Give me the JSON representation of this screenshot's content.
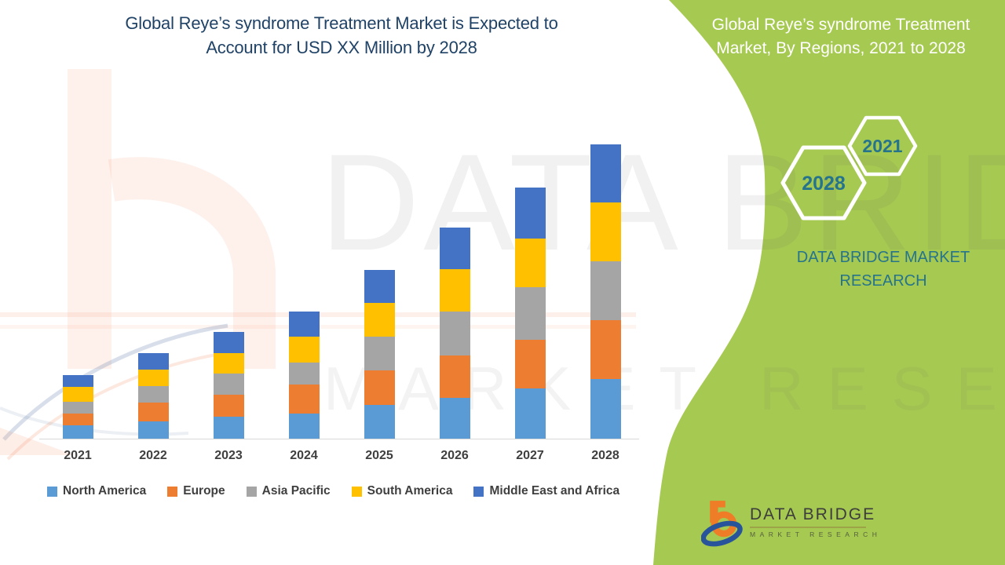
{
  "page": {
    "title_line1": "Global Reye’s syndrome Treatment Market is Expected to",
    "title_line2": "Account for USD XX Million by 2028"
  },
  "colors": {
    "panel_green": "#a6c951",
    "title_navy": "#1f4266",
    "brand_teal": "#26748c",
    "text_dark": "#3f3f3f",
    "axis_gray": "#d9d9d9"
  },
  "side_panel": {
    "heading_line1": "Global Reye’s syndrome Treatment",
    "heading_line2": "Market, By Regions, 2021 to 2028",
    "hexagon_back_label": "2028",
    "hexagon_front_label": "2021",
    "brand_line1": "DATA BRIDGE MARKET",
    "brand_line2": "RESEARCH"
  },
  "footer_logo": {
    "brand": "DATA BRIDGE",
    "subtitle": "MARKET RESEARCH"
  },
  "watermark": {
    "line1": "DATA BRIDGE",
    "line2": "MARKET RESEARCH"
  },
  "chart_data": {
    "type": "bar",
    "stacked": true,
    "title": "Global Reye's syndrome Treatment Market, By Regions, 2021 to 2028",
    "categories": [
      "2021",
      "2022",
      "2023",
      "2024",
      "2025",
      "2026",
      "2027",
      "2028"
    ],
    "series": [
      {
        "name": "North America",
        "color": "#5B9BD5",
        "values": [
          17,
          22,
          28,
          32,
          43,
          52,
          64,
          76
        ]
      },
      {
        "name": "Europe",
        "color": "#ED7D31",
        "values": [
          15,
          24,
          28,
          37,
          44,
          54,
          62,
          75
        ]
      },
      {
        "name": "Asia Pacific",
        "color": "#A5A5A5",
        "values": [
          15,
          21,
          27,
          28,
          43,
          56,
          67,
          75
        ]
      },
      {
        "name": "South America",
        "color": "#FFC000",
        "values": [
          19,
          21,
          26,
          33,
          43,
          54,
          62,
          75
        ]
      },
      {
        "name": "Middle East and Africa",
        "color": "#4472C4",
        "values": [
          15,
          21,
          27,
          32,
          42,
          53,
          65,
          74
        ]
      }
    ],
    "stack_totals": [
      81,
      109,
      136,
      162,
      215,
      269,
      320,
      375
    ],
    "values_unit": "relative height; actual values shown as USD XX Million (undisclosed)",
    "xlabel": "",
    "ylabel": "",
    "value_axis_visible": false,
    "grid": false,
    "legend_position": "bottom"
  }
}
